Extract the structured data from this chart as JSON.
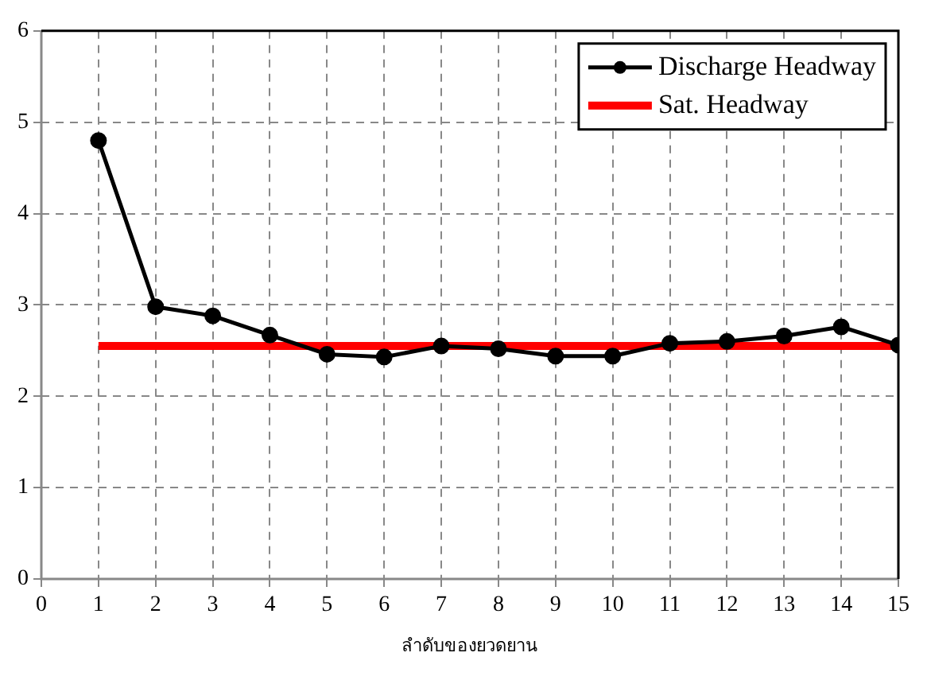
{
  "chart_data": {
    "type": "line",
    "xlabel": "ลำดับของยวดยาน",
    "xlim": [
      0,
      15
    ],
    "xticks": [
      0,
      1,
      2,
      3,
      4,
      5,
      6,
      7,
      8,
      9,
      10,
      11,
      12,
      13,
      14,
      15
    ],
    "ylim": [
      0,
      6
    ],
    "yticks": [
      0,
      1,
      2,
      3,
      4,
      5,
      6
    ],
    "grid": true,
    "legend": "top right",
    "series": [
      {
        "name": "Discharge Headway",
        "color": "#000000",
        "marker": "circle",
        "x": [
          1,
          2,
          3,
          4,
          5,
          6,
          7,
          8,
          9,
          10,
          11,
          12,
          13,
          14,
          15
        ],
        "values": [
          4.8,
          2.98,
          2.88,
          2.67,
          2.46,
          2.43,
          2.55,
          2.52,
          2.44,
          2.44,
          2.58,
          2.6,
          2.66,
          2.76,
          2.56
        ]
      },
      {
        "name": "Sat. Headway",
        "color": "#ff0000",
        "marker": "none",
        "x": [
          1,
          15
        ],
        "values": [
          2.55,
          2.55
        ]
      }
    ]
  }
}
